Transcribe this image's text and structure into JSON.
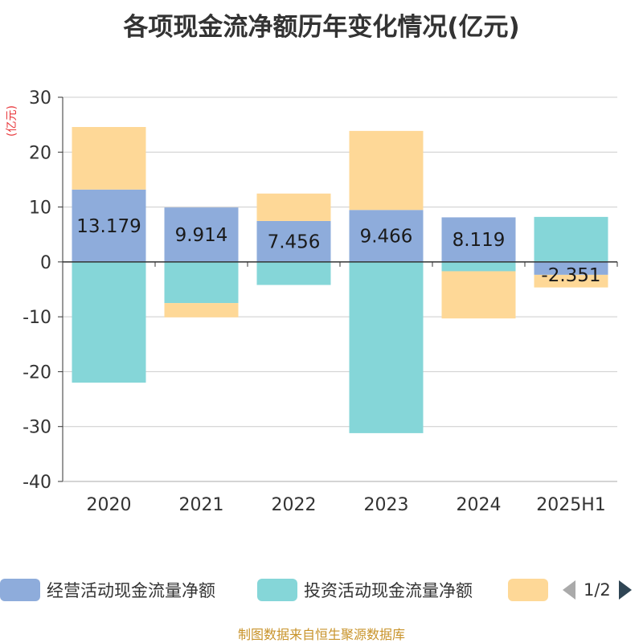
{
  "title": "各项现金流净额历年变化情况(亿元)",
  "unit_label": "(亿元)",
  "colors": {
    "operating": "#8eacdb",
    "investing": "#85d6d8",
    "financing": "#fed897",
    "unit_text": "#e8363a",
    "footer_text": "#c8932a",
    "axis": "#333333",
    "grid": "#cccccc"
  },
  "chart_data": {
    "type": "bar",
    "stacked": true,
    "categories": [
      "2020",
      "2021",
      "2022",
      "2023",
      "2024",
      "2025H1"
    ],
    "ylim": [
      -40,
      30
    ],
    "yticks": [
      30,
      20,
      10,
      0,
      -10,
      -20,
      -30,
      -40
    ],
    "grid": true,
    "legend_position": "bottom",
    "series": [
      {
        "name": "经营活动现金流量净额",
        "key": "operating",
        "values": [
          13.179,
          9.914,
          7.456,
          9.466,
          8.119,
          -2.351
        ],
        "labels": [
          "13.179",
          "9.914",
          "7.456",
          "9.466",
          "8.119",
          "-2.351"
        ]
      },
      {
        "name": "投资活动现金流量净额",
        "key": "investing",
        "values": [
          -22.0,
          -7.5,
          -4.2,
          -31.2,
          -1.7,
          8.2
        ]
      },
      {
        "key": "financing",
        "values": [
          11.4,
          -2.6,
          5.0,
          14.4,
          -8.6,
          -2.3
        ]
      }
    ]
  },
  "legend": {
    "items": [
      {
        "label": "经营活动现金流量净额"
      },
      {
        "label": "投资活动现金流量净额"
      },
      {
        "label": ""
      }
    ],
    "pager": "1/2"
  },
  "footer": "制图数据来自恒生聚源数据库"
}
